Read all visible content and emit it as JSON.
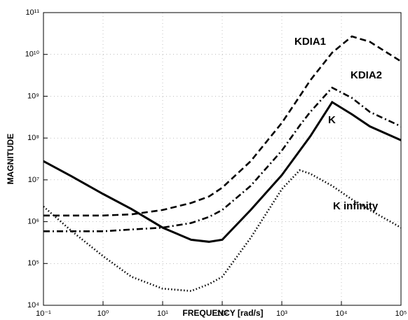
{
  "chart_data": {
    "type": "line",
    "xlabel": "FREQUENCY [rad/s]",
    "ylabel": "MAGNITUDE",
    "xscale": "log",
    "yscale": "log",
    "grid": true,
    "x": [
      0.1,
      0.3,
      1,
      3,
      10,
      30,
      60,
      100,
      300,
      1000,
      2000,
      3000,
      7000,
      15000,
      30000,
      100000
    ],
    "series": [
      {
        "name": "KDIA1",
        "color": "#000000",
        "linestyle": "dashed",
        "values": [
          1400000,
          1400000,
          1400000,
          1500000,
          1900000,
          2800000,
          4000000,
          6500000,
          28000000,
          230000000,
          1000000000,
          2400000000,
          11000000000,
          27000000000,
          20000000000,
          6800000000
        ]
      },
      {
        "name": "KDIA2",
        "color": "#000000",
        "linestyle": "dashdot",
        "values": [
          590000,
          590000,
          590000,
          650000,
          720000,
          930000,
          1300000,
          1900000,
          7200000,
          50000000,
          200000000,
          420000000,
          1600000000,
          910000000,
          420000000,
          190000000
        ]
      },
      {
        "name": "K",
        "color": "#000000",
        "linestyle": "solid",
        "values": [
          28000000,
          12000000,
          4600000,
          2000000,
          720000,
          370000,
          330000,
          370000,
          1900000,
          13000000,
          50000000,
          110000000,
          720000000,
          370000000,
          190000000,
          89000000
        ]
      },
      {
        "name": "K infinity",
        "color": "#000000",
        "linestyle": "dotted",
        "values": [
          2300000,
          590000,
          150000,
          48000,
          25000,
          22000,
          32000,
          48000,
          410000,
          6000000,
          17000000,
          14000000,
          7200000,
          3400000,
          1900000,
          720000
        ]
      }
    ],
    "xlim": [
      0.1,
      100000
    ],
    "ylim": [
      10000,
      100000000000
    ],
    "xticks": [
      {
        "value": 0.1,
        "label": "10⁻¹"
      },
      {
        "value": 1,
        "label": "10⁰"
      },
      {
        "value": 10,
        "label": "10¹"
      },
      {
        "value": 100,
        "label": "10²"
      },
      {
        "value": 1000,
        "label": "10³"
      },
      {
        "value": 10000,
        "label": "10⁴"
      },
      {
        "value": 100000,
        "label": "10⁵"
      }
    ],
    "yticks": [
      {
        "value": 10000,
        "label": "10⁴"
      },
      {
        "value": 100000,
        "label": "10⁵"
      },
      {
        "value": 1000000,
        "label": "10⁶"
      },
      {
        "value": 10000000,
        "label": "10⁷"
      },
      {
        "value": 100000000,
        "label": "10⁸"
      },
      {
        "value": 1000000000,
        "label": "10⁹"
      },
      {
        "value": 10000000000,
        "label": "10¹⁰"
      },
      {
        "value": 100000000000,
        "label": "10¹¹"
      }
    ]
  }
}
